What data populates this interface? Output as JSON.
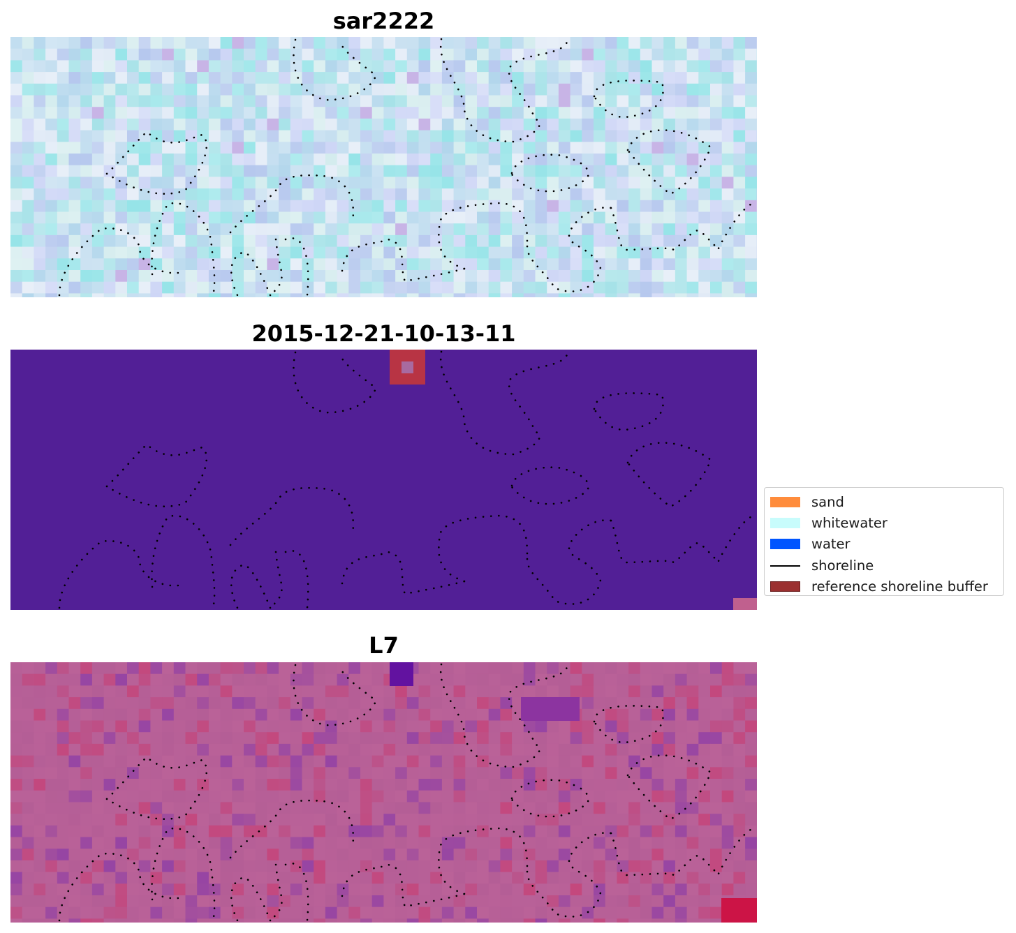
{
  "panels": [
    {
      "id": "sar",
      "title": "sar2222"
    },
    {
      "id": "class",
      "title": "2015-12-21-10-13-11"
    },
    {
      "id": "l7",
      "title": "L7"
    }
  ],
  "legend": {
    "items": [
      {
        "kind": "patch",
        "label": "sand",
        "color": "#ff8c3c"
      },
      {
        "kind": "patch",
        "label": "whitewater",
        "color": "#c8fcfc"
      },
      {
        "kind": "patch",
        "label": "water",
        "color": "#0055ff"
      },
      {
        "kind": "line",
        "label": "shoreline",
        "color": "#000000"
      },
      {
        "kind": "patch",
        "label": "reference shoreline buffer",
        "color": "#9b3030"
      }
    ]
  },
  "colors": {
    "classification_background": "#521f96",
    "buffer": "#b83444",
    "shoreline_dots": "#000000"
  }
}
